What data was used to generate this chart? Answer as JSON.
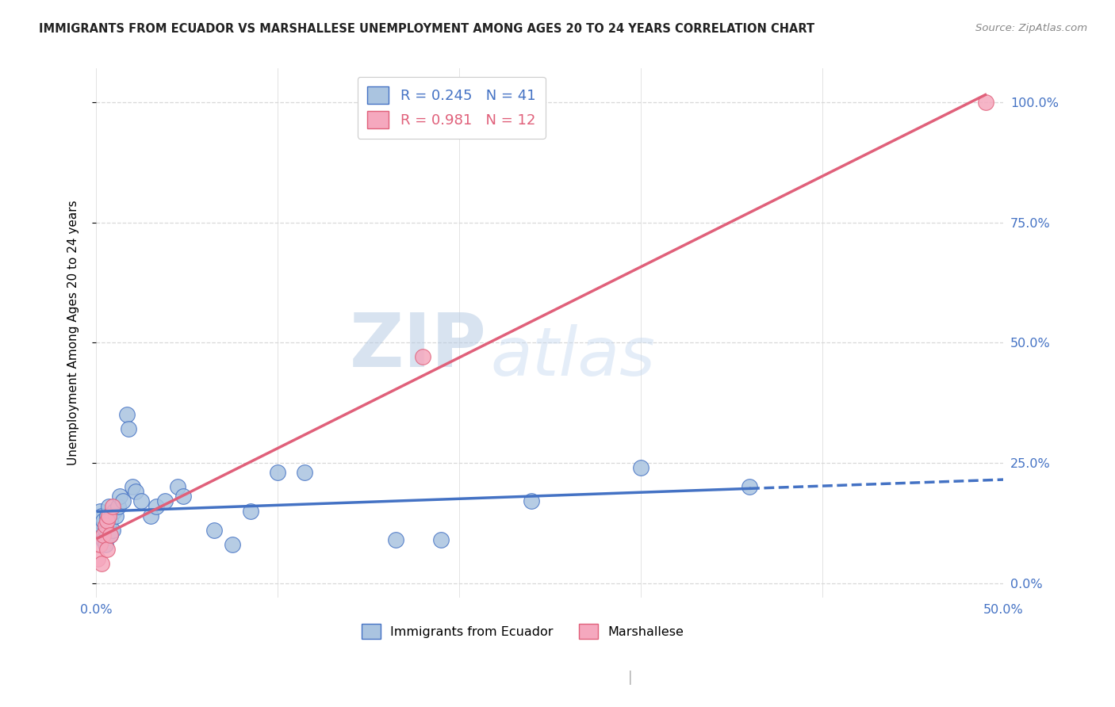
{
  "title": "IMMIGRANTS FROM ECUADOR VS MARSHALLESE UNEMPLOYMENT AMONG AGES 20 TO 24 YEARS CORRELATION CHART",
  "source": "Source: ZipAtlas.com",
  "ylabel": "Unemployment Among Ages 20 to 24 years",
  "xlim": [
    0.0,
    0.5
  ],
  "ylim": [
    -0.03,
    1.07
  ],
  "yticks": [
    0.0,
    0.25,
    0.5,
    0.75,
    1.0
  ],
  "ytick_labels": [
    "0.0%",
    "25.0%",
    "50.0%",
    "75.0%",
    "100.0%"
  ],
  "xticks": [
    0.0,
    0.1,
    0.2,
    0.3,
    0.4,
    0.5
  ],
  "xtick_labels_show": [
    "0.0%",
    "",
    "",
    "",
    "",
    "50.0%"
  ],
  "ecuador_R": 0.245,
  "ecuador_N": 41,
  "marshallese_R": 0.981,
  "marshallese_N": 12,
  "ecuador_color": "#aac4e0",
  "marshallese_color": "#f5a8be",
  "ecuador_line_color": "#4472c4",
  "marshallese_line_color": "#e0607a",
  "watermark_zip": "ZIP",
  "watermark_atlas": "atlas",
  "ecuador_x": [
    0.001,
    0.002,
    0.002,
    0.003,
    0.003,
    0.004,
    0.004,
    0.005,
    0.005,
    0.006,
    0.006,
    0.007,
    0.007,
    0.008,
    0.008,
    0.009,
    0.01,
    0.011,
    0.012,
    0.013,
    0.015,
    0.017,
    0.018,
    0.02,
    0.022,
    0.025,
    0.03,
    0.033,
    0.038,
    0.045,
    0.048,
    0.065,
    0.075,
    0.085,
    0.1,
    0.115,
    0.165,
    0.19,
    0.24,
    0.3,
    0.36
  ],
  "ecuador_y": [
    0.1,
    0.13,
    0.15,
    0.12,
    0.14,
    0.09,
    0.13,
    0.11,
    0.08,
    0.1,
    0.14,
    0.12,
    0.16,
    0.1,
    0.13,
    0.11,
    0.15,
    0.14,
    0.16,
    0.18,
    0.17,
    0.35,
    0.32,
    0.2,
    0.19,
    0.17,
    0.14,
    0.16,
    0.17,
    0.2,
    0.18,
    0.11,
    0.08,
    0.15,
    0.23,
    0.23,
    0.09,
    0.09,
    0.17,
    0.24,
    0.2
  ],
  "marshallese_x": [
    0.001,
    0.002,
    0.003,
    0.004,
    0.005,
    0.006,
    0.006,
    0.007,
    0.008,
    0.009,
    0.18,
    0.49
  ],
  "marshallese_y": [
    0.05,
    0.08,
    0.04,
    0.1,
    0.12,
    0.07,
    0.13,
    0.14,
    0.1,
    0.16,
    0.47,
    1.0
  ],
  "background_color": "#ffffff",
  "grid_color": "#d8d8d8"
}
